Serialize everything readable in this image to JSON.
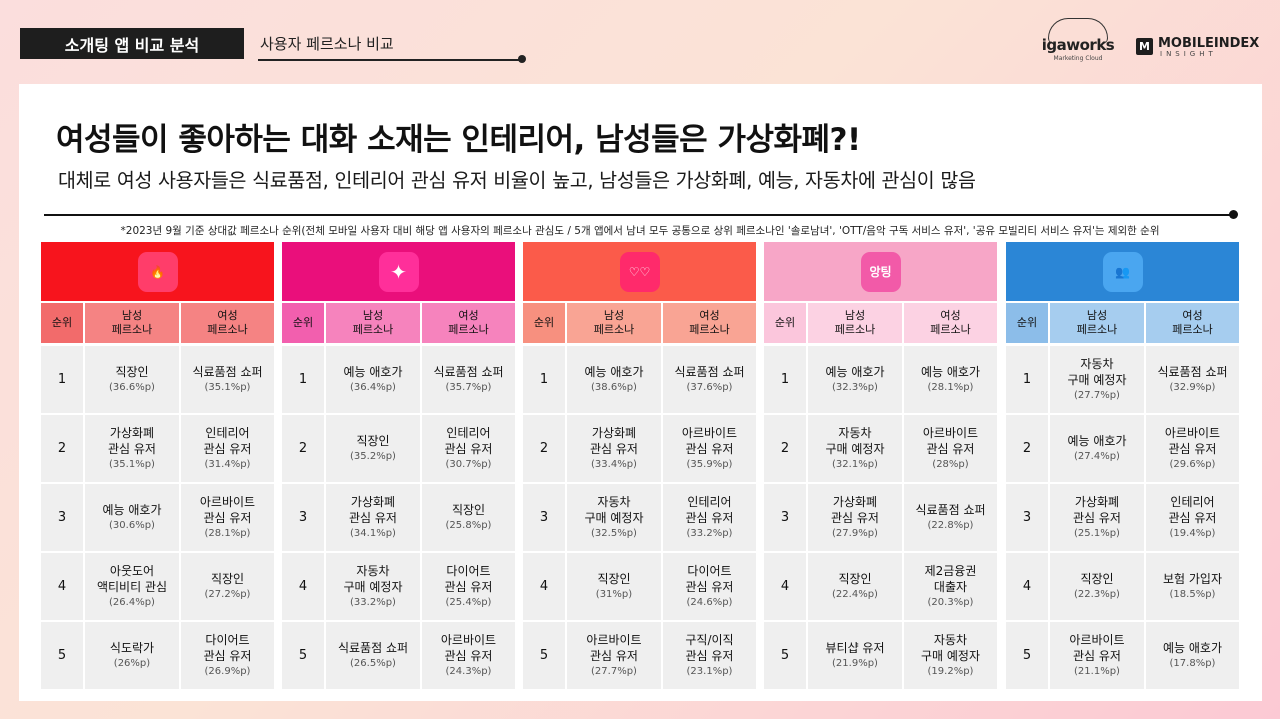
{
  "header": {
    "tag": "소개팅 앱 비교 분석",
    "subtitle": "사용자 페르소나 비교",
    "logo_iga": "igaworks",
    "logo_iga_sub": "Marketing Cloud",
    "logo_mi_badge": "M",
    "logo_mi": "MOBILEINDEX",
    "logo_mi_sub": "INSIGHT"
  },
  "title": "여성들이 좋아하는 대화 소재는 인테리어, 남성들은 가상화폐?!",
  "description": "대체로 여성 사용자들은 식료품점, 인테리어 관심 유저 비율이 높고, 남성들은 가상화폐, 예능, 자동차에 관심이 많음",
  "note": "*2023년 9월 기준 상대값 페르소나 순위(전체 모바일 사용자 대비 해당 앱 사용자의 페르소나 관심도 / 5개 앱에서 남녀 모두 공통으로 상위 페르소나인 '솔로남녀', 'OTT/음악 구독 서비스 유저', '공유 모빌리티 서비스 유저'는 제외한 순위",
  "columns": {
    "rank": "순위",
    "male": "남성\n페르소나",
    "female": "여성\n페르소나"
  },
  "apps": [
    {
      "icon": "tinder-flame-icon",
      "glyph": "🔥",
      "head_color": "#f7141d",
      "icon_bg": "#ff3d6a",
      "sub_rank_color": "#f26b6b",
      "sub_col_color": "#f58383",
      "rows": [
        {
          "rank": "1",
          "male": "직장인",
          "male_p": "(36.6%p)",
          "female": "식료품점 쇼퍼",
          "female_p": "(35.1%p)"
        },
        {
          "rank": "2",
          "male": "가상화폐\n관심 유저",
          "male_p": "(35.1%p)",
          "female": "인테리어\n관심 유저",
          "female_p": "(31.4%p)"
        },
        {
          "rank": "3",
          "male": "예능 애호가",
          "male_p": "(30.6%p)",
          "female": "아르바이트\n관심 유저",
          "female_p": "(28.1%p)"
        },
        {
          "rank": "4",
          "male": "아웃도어\n액티비티 관심",
          "male_p": "(26.4%p)",
          "female": "직장인",
          "female_p": "(27.2%p)"
        },
        {
          "rank": "5",
          "male": "식도락가",
          "male_p": "(26%p)",
          "female": "다이어트\n관심 유저",
          "female_p": "(26.9%p)"
        }
      ]
    },
    {
      "icon": "sparkle-icon",
      "glyph": "✦",
      "head_color": "#ea0f7b",
      "icon_bg": "#ff2f9a",
      "sub_rank_color": "#f25fae",
      "sub_col_color": "#f683bd",
      "rows": [
        {
          "rank": "1",
          "male": "예능 애호가",
          "male_p": "(36.4%p)",
          "female": "식료품점 쇼퍼",
          "female_p": "(35.7%p)"
        },
        {
          "rank": "2",
          "male": "직장인",
          "male_p": "(35.2%p)",
          "female": "인테리어\n관심 유저",
          "female_p": "(30.7%p)"
        },
        {
          "rank": "3",
          "male": "가상화폐\n관심 유저",
          "male_p": "(34.1%p)",
          "female": "직장인",
          "female_p": "(25.8%p)"
        },
        {
          "rank": "4",
          "male": "자동차\n구매 예정자",
          "male_p": "(33.2%p)",
          "female": "다이어트\n관심 유저",
          "female_p": "(25.4%p)"
        },
        {
          "rank": "5",
          "male": "식료품점 쇼퍼",
          "male_p": "(26.5%p)",
          "female": "아르바이트\n관심 유저",
          "female_p": "(24.3%p)"
        }
      ]
    },
    {
      "icon": "double-heart-icon",
      "glyph": "♡♡",
      "head_color": "#fb5b4a",
      "icon_bg": "#ff2a6b",
      "sub_rank_color": "#f7907f",
      "sub_col_color": "#f9a494",
      "rows": [
        {
          "rank": "1",
          "male": "예능 애호가",
          "male_p": "(38.6%p)",
          "female": "식료품점 쇼퍼",
          "female_p": "(37.6%p)"
        },
        {
          "rank": "2",
          "male": "가상화폐\n관심 유저",
          "male_p": "(33.4%p)",
          "female": "아르바이트\n관심 유저",
          "female_p": "(35.9%p)"
        },
        {
          "rank": "3",
          "male": "자동차\n구매 예정자",
          "male_p": "(32.5%p)",
          "female": "인테리어\n관심 유저",
          "female_p": "(33.2%p)"
        },
        {
          "rank": "4",
          "male": "직장인",
          "male_p": "(31%p)",
          "female": "다이어트\n관심 유저",
          "female_p": "(24.6%p)"
        },
        {
          "rank": "5",
          "male": "아르바이트\n관심 유저",
          "male_p": "(27.7%p)",
          "female": "구직/이직\n관심 유저",
          "female_p": "(23.1%p)"
        }
      ]
    },
    {
      "icon": "speech-bubble-icon",
      "glyph": "앙팅",
      "head_color": "#f7a6c7",
      "icon_bg": "#f25aa8",
      "sub_rank_color": "#fbc6dc",
      "sub_col_color": "#fcd2e3",
      "rows": [
        {
          "rank": "1",
          "male": "예능 애호가",
          "male_p": "(32.3%p)",
          "female": "예능 애호가",
          "female_p": "(28.1%p)"
        },
        {
          "rank": "2",
          "male": "자동차\n구매 예정자",
          "male_p": "(32.1%p)",
          "female": "아르바이트\n관심 유저",
          "female_p": "(28%p)"
        },
        {
          "rank": "3",
          "male": "가상화폐\n관심 유저",
          "male_p": "(27.9%p)",
          "female": "식료품점 쇼퍼",
          "female_p": "(22.8%p)"
        },
        {
          "rank": "4",
          "male": "직장인",
          "male_p": "(22.4%p)",
          "female": "제2금융권\n대출자",
          "female_p": "(20.3%p)"
        },
        {
          "rank": "5",
          "male": "뷰티샵 유저",
          "male_p": "(21.9%p)",
          "female": "자동차\n구매 예정자",
          "female_p": "(19.2%p)"
        }
      ]
    },
    {
      "icon": "people-group-icon",
      "glyph": "👥",
      "head_color": "#2b86d6",
      "icon_bg": "#4aa6f0",
      "sub_rank_color": "#8cbde9",
      "sub_col_color": "#a6cdef",
      "rows": [
        {
          "rank": "1",
          "male": "자동차\n구매 예정자",
          "male_p": "(27.7%p)",
          "female": "식료품점 쇼퍼",
          "female_p": "(32.9%p)"
        },
        {
          "rank": "2",
          "male": "예능 애호가",
          "male_p": "(27.4%p)",
          "female": "아르바이트\n관심 유저",
          "female_p": "(29.6%p)"
        },
        {
          "rank": "3",
          "male": "가상화폐\n관심 유저",
          "male_p": "(25.1%p)",
          "female": "인테리어\n관심 유저",
          "female_p": "(19.4%p)"
        },
        {
          "rank": "4",
          "male": "직장인",
          "male_p": "(22.3%p)",
          "female": "보험 가입자",
          "female_p": "(18.5%p)"
        },
        {
          "rank": "5",
          "male": "아르바이트\n관심 유저",
          "male_p": "(21.1%p)",
          "female": "예능 애호가",
          "female_p": "(17.8%p)"
        }
      ]
    }
  ]
}
